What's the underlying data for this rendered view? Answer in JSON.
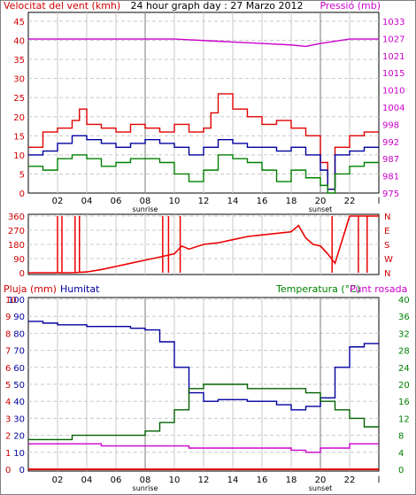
{
  "chart_data": [
    {
      "type": "line",
      "title": "24 hour graph day : 27 Marzo 2012",
      "left_axis_label": "Velocitat del vent (kmh)",
      "right_axis_label": "Pressió (mb)",
      "colors": {
        "frame": "#000000",
        "gust": "#e00000",
        "avg": "#0000a0",
        "min": "#008000",
        "pressure": "#cc00cc",
        "left_axis": "#d00000",
        "right_axis": "#cc00cc",
        "grid": "#c0c0c0"
      },
      "left_ticks": [
        "0",
        "5",
        "10",
        "15",
        "20",
        "25",
        "30",
        "35",
        "40",
        "45"
      ],
      "left_range": [
        0,
        45
      ],
      "right_ticks": [
        "975",
        "981",
        "987",
        "992",
        "998",
        "1004",
        "1010",
        "1015",
        "1021",
        "1027",
        "1033"
      ],
      "right_range": [
        975,
        1033
      ],
      "x_ticks": [
        "02",
        "04",
        "06",
        "08",
        "10",
        "12",
        "14",
        "16",
        "18",
        "20",
        "22",
        "l"
      ],
      "markers": {
        "sunrise": "sunrise",
        "sunset": "sunset",
        "sunrise_hour": 8,
        "sunset_hour": 20
      },
      "x_range": [
        0,
        24
      ],
      "series": [
        {
          "key": "gust",
          "x": [
            0,
            1,
            2,
            3,
            3.5,
            4,
            5,
            6,
            7,
            8,
            9,
            10,
            11,
            12,
            12.5,
            13,
            14,
            15,
            16,
            17,
            18,
            19,
            20,
            20.5,
            21,
            22,
            23,
            24
          ],
          "values": [
            12,
            16,
            17,
            19,
            22,
            18,
            17,
            16,
            18,
            17,
            16,
            18,
            16,
            17,
            21,
            26,
            22,
            20,
            18,
            19,
            17,
            15,
            8,
            1,
            12,
            15,
            16,
            16
          ]
        },
        {
          "key": "avg",
          "x": [
            0,
            1,
            2,
            3,
            4,
            5,
            6,
            7,
            8,
            9,
            10,
            11,
            12,
            13,
            14,
            15,
            16,
            17,
            18,
            19,
            20,
            20.5,
            21,
            22,
            23,
            24
          ],
          "values": [
            10,
            11,
            13,
            15,
            14,
            13,
            12,
            13,
            14,
            13,
            12,
            10,
            12,
            14,
            13,
            12,
            12,
            11,
            12,
            10,
            6,
            1,
            10,
            11,
            12,
            12
          ]
        },
        {
          "key": "min",
          "x": [
            0,
            1,
            2,
            3,
            4,
            5,
            6,
            7,
            8,
            9,
            10,
            11,
            12,
            13,
            14,
            15,
            16,
            17,
            18,
            19,
            20,
            20.5,
            21,
            22,
            23,
            24
          ],
          "values": [
            7,
            6,
            9,
            10,
            9,
            7,
            8,
            9,
            9,
            8,
            5,
            3,
            6,
            10,
            9,
            8,
            6,
            3,
            6,
            4,
            2,
            0,
            5,
            7,
            8,
            8
          ]
        },
        {
          "key": "pressure",
          "axis": "right",
          "x": [
            0,
            2,
            4,
            6,
            8,
            10,
            12,
            14,
            16,
            18,
            19,
            20,
            22,
            24
          ],
          "values": [
            1027,
            1027,
            1027,
            1027,
            1027,
            1027,
            1026.5,
            1026,
            1025.5,
            1025,
            1024.5,
            1025.5,
            1027,
            1027
          ]
        }
      ]
    },
    {
      "type": "line",
      "left_ticks": [
        "0",
        "90",
        "180",
        "270",
        "360"
      ],
      "left_range": [
        0,
        360
      ],
      "right_ticks": [
        "N",
        "W",
        "S",
        "E",
        "N"
      ],
      "colors": {
        "dir": "#ee0000"
      },
      "series": [
        {
          "key": "direction",
          "x": [
            0,
            1,
            2,
            3,
            4,
            5,
            6,
            7,
            8,
            9,
            10,
            10.5,
            11,
            12,
            13,
            14,
            15,
            16,
            17,
            18,
            18.5,
            19,
            19.5,
            20,
            20.5,
            21,
            22,
            23,
            24
          ],
          "values": [
            0,
            0,
            0,
            0,
            5,
            20,
            40,
            60,
            80,
            100,
            120,
            170,
            150,
            180,
            190,
            210,
            230,
            240,
            250,
            260,
            300,
            220,
            180,
            170,
            120,
            60,
            360,
            360,
            360
          ]
        }
      ]
    },
    {
      "type": "line",
      "left_label_1": "Pluja (mm)",
      "left_label_2": "Humitat",
      "right_label_1": "Temperatura (°C)",
      "right_label_2": "Punt rosada",
      "colors": {
        "rain": "#e00000",
        "humidity": "#0000a0",
        "temp": "#006000",
        "dew": "#cc00cc",
        "left_axis_rain": "#d00000",
        "left_axis_hum": "#0000a0",
        "right_axis": "#008000"
      },
      "rain_ticks": [
        "0",
        "1",
        "2",
        "3",
        "4",
        "5",
        "6",
        "7",
        "8",
        "9",
        "10"
      ],
      "hum_ticks": [
        "0",
        "10",
        "20",
        "30",
        "40",
        "50",
        "60",
        "70",
        "80",
        "90",
        "100"
      ],
      "temp_ticks": [
        "0",
        "4",
        "8",
        "12",
        "16",
        "20",
        "24",
        "28",
        "32",
        "36",
        "40"
      ],
      "series": [
        {
          "key": "humidity",
          "axis": "hum",
          "x": [
            0,
            1,
            2,
            3,
            4,
            5,
            6,
            7,
            8,
            9,
            10,
            11,
            12,
            13,
            14,
            15,
            16,
            17,
            18,
            19,
            20,
            21,
            22,
            23,
            24
          ],
          "values": [
            87,
            86,
            85,
            85,
            84,
            84,
            84,
            83,
            82,
            75,
            60,
            45,
            40,
            41,
            41,
            40,
            40,
            38,
            35,
            37,
            42,
            60,
            72,
            74,
            74
          ]
        },
        {
          "key": "temp",
          "axis": "temp",
          "x": [
            0,
            1,
            2,
            3,
            4,
            5,
            6,
            7,
            8,
            9,
            10,
            11,
            12,
            13,
            14,
            15,
            16,
            17,
            18,
            19,
            20,
            21,
            22,
            23,
            24
          ],
          "values": [
            7,
            7,
            7,
            8,
            8,
            8,
            8,
            8,
            9,
            11,
            14,
            19,
            20,
            20,
            20,
            19,
            19,
            19,
            19,
            18,
            16,
            14,
            12,
            10,
            10
          ]
        },
        {
          "key": "dew",
          "axis": "temp",
          "x": [
            0,
            1,
            2,
            3,
            4,
            5,
            6,
            7,
            8,
            9,
            10,
            11,
            12,
            13,
            14,
            15,
            16,
            17,
            18,
            19,
            20,
            21,
            22,
            23,
            24
          ],
          "values": [
            6,
            6,
            6,
            6,
            6,
            5.5,
            5.5,
            5.5,
            5.5,
            5.5,
            5.5,
            5,
            5,
            5,
            5,
            5,
            5,
            5,
            4.5,
            4,
            5,
            5,
            6,
            6,
            6
          ]
        },
        {
          "key": "rain",
          "axis": "rain",
          "x": [
            0,
            24
          ],
          "values": [
            0,
            0
          ]
        }
      ]
    }
  ]
}
